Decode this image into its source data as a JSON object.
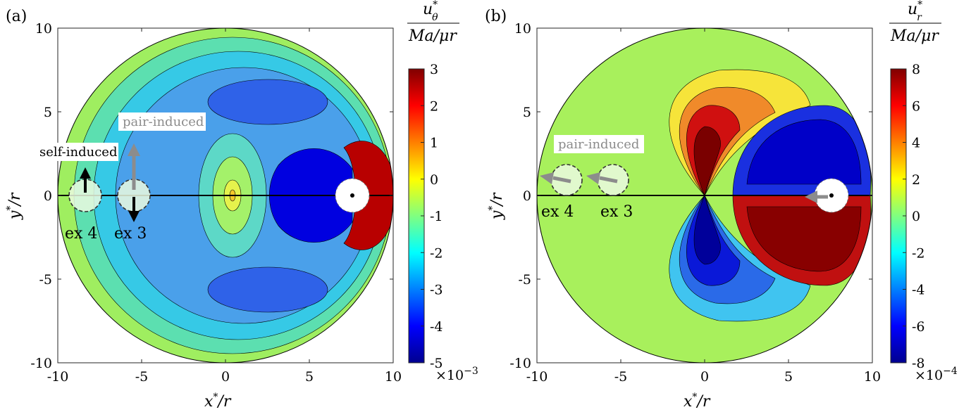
{
  "chart_data": [
    {
      "type": "heatmap",
      "panel_label": "(a)",
      "xlabel": "x*/r",
      "ylabel": "y*/r",
      "xlim": [
        -10,
        10
      ],
      "ylim": [
        -10,
        10
      ],
      "xticks": [
        "-10",
        "-5",
        "0",
        "5",
        "10"
      ],
      "yticks": [
        "10",
        "5",
        "0",
        "-5",
        "-10"
      ],
      "domain_shape": "circle of radius 10",
      "colorbar": {
        "label_num": "u*θ",
        "label_den": "Ma/μr",
        "range": [
          -5,
          3
        ],
        "ticks": [
          "3",
          "2",
          "1",
          "0",
          "-1",
          "-2",
          "-3",
          "-4",
          "-5"
        ],
        "exponent_label": "×10−3",
        "colormap": "jet"
      },
      "regions": [
        {
          "name": "background",
          "value": -2.7
        },
        {
          "name": "outer ring",
          "value": -1.0
        },
        {
          "name": "negative lobe upper",
          "value": -4.0
        },
        {
          "name": "negative lobe lower",
          "value": -4.0
        },
        {
          "name": "central structure",
          "value": -1.0
        },
        {
          "name": "dark lobe",
          "value": -5.0
        },
        {
          "name": "positive lobe",
          "value": 3.0
        }
      ],
      "body": {
        "x": 7.5,
        "y": 0,
        "radius": 1.0
      },
      "ghost_circles": [
        {
          "label": "ex 4",
          "x": -8.2,
          "y": 0
        },
        {
          "label": "ex 3",
          "x": -5.4,
          "y": 0
        }
      ],
      "annotations": [
        {
          "text": "self-induced",
          "arrow": "black vertical arrow at ex 4 (up)"
        },
        {
          "text": "pair-induced",
          "arrow": "gray vertical arrow at ex 3 (up/down)"
        }
      ]
    },
    {
      "type": "heatmap",
      "panel_label": "(b)",
      "xlabel": "x*/r",
      "ylabel": "y*/r",
      "xlim": [
        -10,
        10
      ],
      "ylim": [
        -10,
        10
      ],
      "xticks": [
        "-10",
        "-5",
        "0",
        "5",
        "10"
      ],
      "yticks": [
        "10",
        "5",
        "0",
        "-5",
        "-10"
      ],
      "domain_shape": "circle of radius 10",
      "colorbar": {
        "label_num": "u*r",
        "label_den": "Ma/μr",
        "range": [
          -8,
          8
        ],
        "ticks": [
          "8",
          "6",
          "4",
          "2",
          "0",
          "-2",
          "-4",
          "-6",
          "-8"
        ],
        "exponent_label": "×10−4",
        "colormap": "jet"
      },
      "regions": [
        {
          "name": "background",
          "value": 0.3
        },
        {
          "name": "positive lobe (upper left)",
          "value": 8.0
        },
        {
          "name": "negative lobe (lower left)",
          "value": -8.0
        },
        {
          "name": "negative lobe (upper right)",
          "value": -8.0
        },
        {
          "name": "positive lobe (lower right)",
          "value": 8.0
        }
      ],
      "body": {
        "x": 7.5,
        "y": 0,
        "radius": 1.0
      },
      "ghost_circles": [
        {
          "label": "ex 4",
          "x": -8.2,
          "y": 0.9
        },
        {
          "label": "ex 3",
          "x": -5.5,
          "y": 0.9
        }
      ],
      "annotations": [
        {
          "text": "pair-induced",
          "arrow": "gray arrows pointing left"
        }
      ]
    }
  ],
  "labels": {
    "a": {
      "panel": "(a)",
      "self": "self-induced",
      "pair": "pair-induced",
      "ex4": "ex 4",
      "ex3": "ex 3",
      "xlabel_main": "x",
      "xlabel_sup": "*",
      "xlabel_tail": "/r",
      "ylabel_main": "y",
      "ylabel_sup": "*",
      "ylabel_tail": "/r",
      "cb_num_main": "u",
      "cb_num_sup": "*",
      "cb_num_sub": "θ",
      "cb_den": "Ma/μr",
      "cb_exp": "×10",
      "cb_exp_pow": "−3"
    },
    "b": {
      "panel": "(b)",
      "pair": "pair-induced",
      "ex4": "ex 4",
      "ex3": "ex 3",
      "xlabel_main": "x",
      "xlabel_sup": "*",
      "xlabel_tail": "/r",
      "ylabel_main": "y",
      "ylabel_sup": "*",
      "ylabel_tail": "/r",
      "cb_num_main": "u",
      "cb_num_sup": "*",
      "cb_num_sub": "r",
      "cb_den": "Ma/μr",
      "cb_exp": "×10",
      "cb_exp_pow": "−4"
    }
  }
}
